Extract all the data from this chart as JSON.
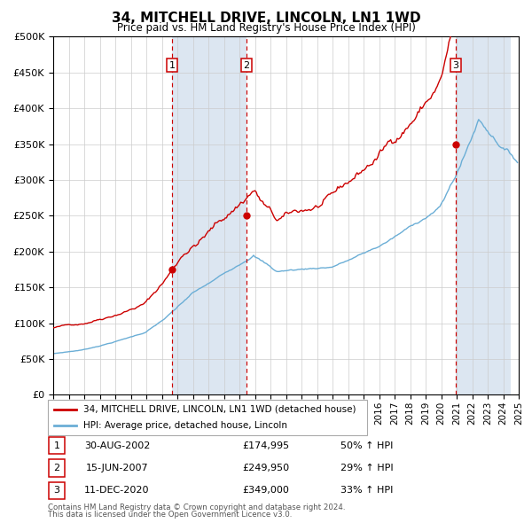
{
  "title": "34, MITCHELL DRIVE, LINCOLN, LN1 1WD",
  "subtitle": "Price paid vs. HM Land Registry's House Price Index (HPI)",
  "legend_line1": "34, MITCHELL DRIVE, LINCOLN, LN1 1WD (detached house)",
  "legend_line2": "HPI: Average price, detached house, Lincoln",
  "footer1": "Contains HM Land Registry data © Crown copyright and database right 2024.",
  "footer2": "This data is licensed under the Open Government Licence v3.0.",
  "transactions": [
    {
      "num": 1,
      "date": "30-AUG-2002",
      "price": "£174,995",
      "change": "50% ↑ HPI",
      "x_year": 2002.66
    },
    {
      "num": 2,
      "date": "15-JUN-2007",
      "price": "£249,950",
      "change": "29% ↑ HPI",
      "x_year": 2007.45
    },
    {
      "num": 3,
      "date": "11-DEC-2020",
      "price": "£349,000",
      "change": "33% ↑ HPI",
      "x_year": 2020.94
    }
  ],
  "transaction_values": [
    174995,
    249950,
    349000
  ],
  "transaction_years": [
    2002.66,
    2007.45,
    2020.94
  ],
  "hpi_color": "#6baed6",
  "price_color": "#cc0000",
  "vline_color": "#cc0000",
  "shade_color": "#dce6f1",
  "hatch_color": "#c0c8d8",
  "ylim": [
    0,
    500000
  ],
  "xlim_start": 1995,
  "xlim_end": 2025,
  "yticks": [
    0,
    50000,
    100000,
    150000,
    200000,
    250000,
    300000,
    350000,
    400000,
    450000,
    500000
  ],
  "ytick_labels": [
    "£0",
    "£50K",
    "£100K",
    "£150K",
    "£200K",
    "£250K",
    "£300K",
    "£350K",
    "£400K",
    "£450K",
    "£500K"
  ]
}
